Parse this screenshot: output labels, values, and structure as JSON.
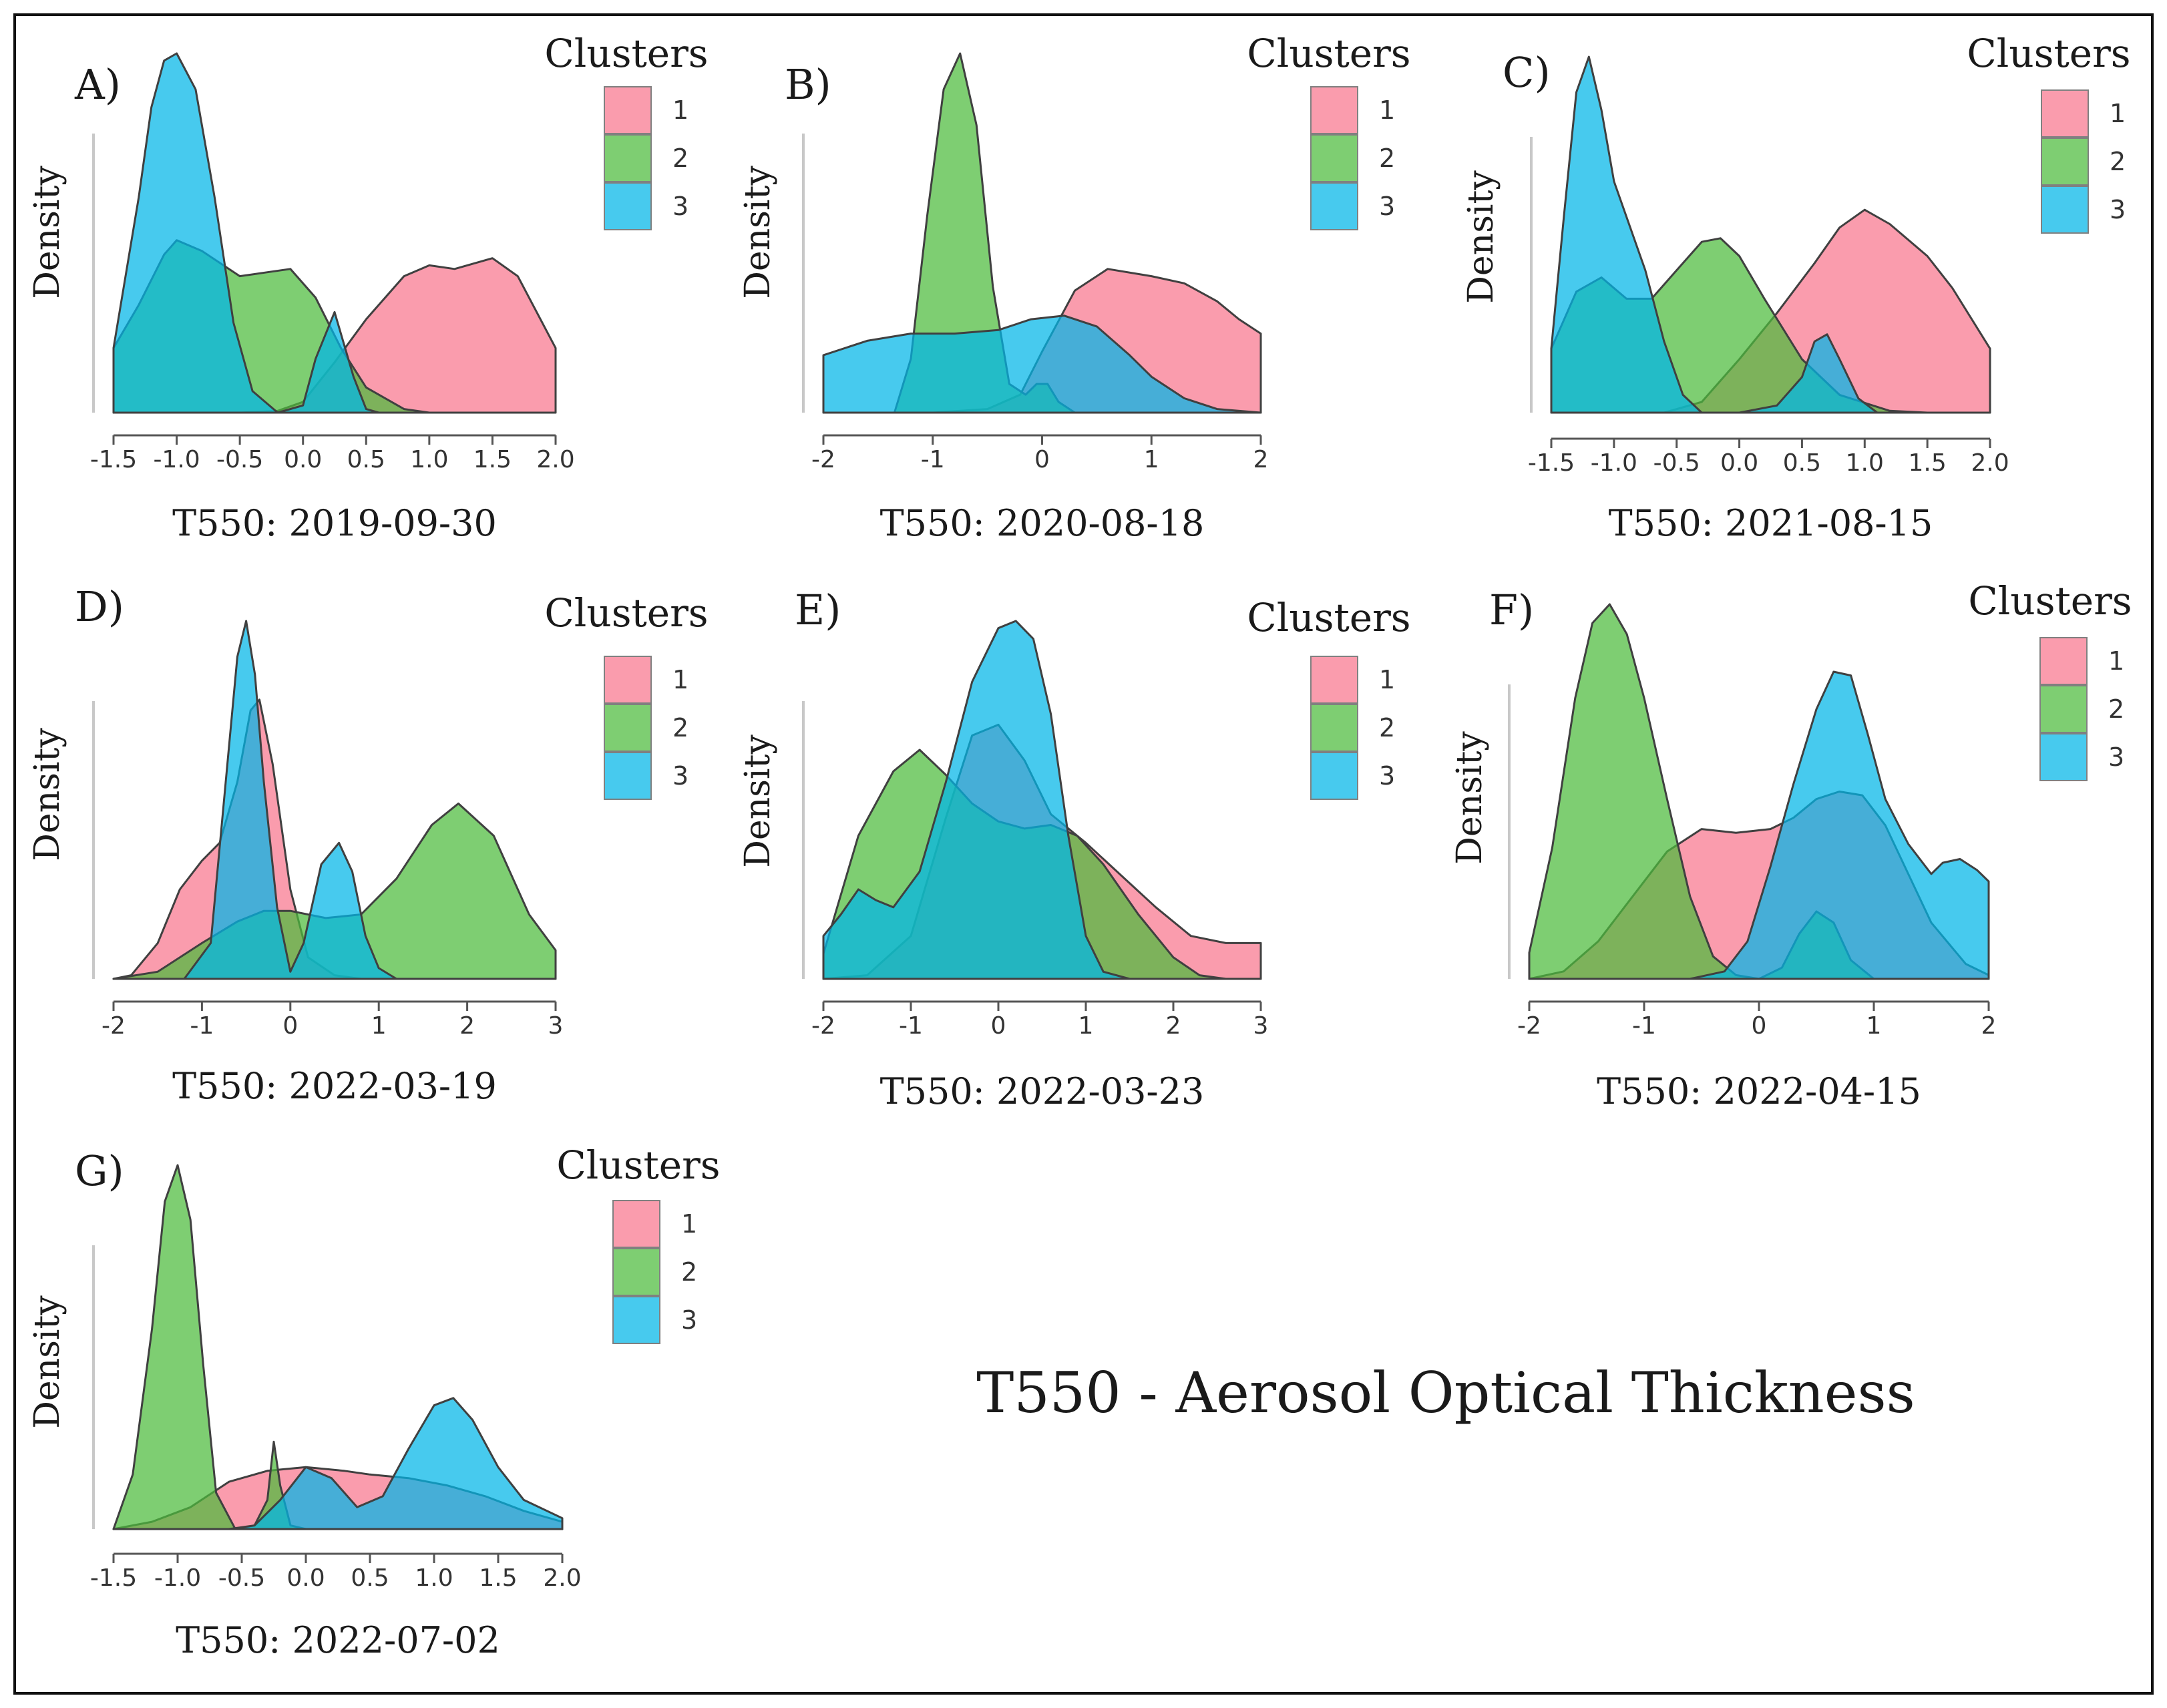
{
  "figure_title": "T550 - Aerosol Optical Thickness",
  "colors": {
    "cluster_1": "#F8768D",
    "cluster_2": "#4CBB3C",
    "cluster_3": "#00B5E8",
    "outline": "#404040",
    "frame": "#111111"
  },
  "chart_data": [
    {
      "panel": "A)",
      "type": "area",
      "xlabel": "T550: 2019-09-30",
      "ylabel": "Density",
      "xlim": [
        -1.5,
        2.0
      ],
      "xticks": [
        "-1.5",
        "-1.0",
        "-0.5",
        "0.0",
        "0.5",
        "1.0",
        "1.5",
        "2.0"
      ],
      "legend": {
        "title": "Clusters",
        "entries": [
          "1",
          "2",
          "3"
        ]
      },
      "series": [
        {
          "name": "1",
          "x": [
            -1.5,
            -0.5,
            -0.2,
            0.0,
            0.25,
            0.5,
            0.8,
            1.0,
            1.2,
            1.5,
            1.7,
            2.0
          ],
          "y": [
            0,
            0,
            0.005,
            0.03,
            0.14,
            0.26,
            0.38,
            0.41,
            0.4,
            0.43,
            0.38,
            0.18
          ]
        },
        {
          "name": "2",
          "x": [
            -1.5,
            -1.3,
            -1.1,
            -1.0,
            -0.8,
            -0.5,
            -0.3,
            -0.1,
            0.1,
            0.3,
            0.5,
            0.8,
            1.0
          ],
          "y": [
            0.18,
            0.3,
            0.44,
            0.48,
            0.45,
            0.38,
            0.39,
            0.4,
            0.32,
            0.18,
            0.07,
            0.01,
            0
          ]
        },
        {
          "name": "3",
          "x": [
            -1.5,
            -1.3,
            -1.2,
            -1.1,
            -1.0,
            -0.85,
            -0.7,
            -0.55,
            -0.4,
            -0.2,
            0.0,
            0.1,
            0.25,
            0.4,
            0.5,
            0.6,
            2.0
          ],
          "y": [
            0.18,
            0.6,
            0.85,
            0.98,
            1.0,
            0.9,
            0.6,
            0.25,
            0.06,
            0.0,
            0.02,
            0.15,
            0.28,
            0.1,
            0.01,
            0,
            0
          ]
        }
      ]
    },
    {
      "panel": "B)",
      "type": "area",
      "xlabel": "T550: 2020-08-18",
      "ylabel": "Density",
      "xlim": [
        -2,
        2
      ],
      "xticks": [
        "-2",
        "-1",
        "0",
        "1",
        "2"
      ],
      "legend": {
        "title": "Clusters",
        "entries": [
          "1",
          "2",
          "3"
        ]
      },
      "series": [
        {
          "name": "1",
          "x": [
            -2,
            -1.0,
            -0.5,
            -0.2,
            0.0,
            0.3,
            0.6,
            1.0,
            1.3,
            1.6,
            1.8,
            2.0
          ],
          "y": [
            0,
            0,
            0.01,
            0.05,
            0.17,
            0.34,
            0.4,
            0.38,
            0.36,
            0.31,
            0.26,
            0.22
          ]
        },
        {
          "name": "2",
          "x": [
            -2,
            -1.35,
            -1.2,
            -1.05,
            -0.9,
            -0.75,
            -0.6,
            -0.45,
            -0.3,
            -0.15,
            -0.05,
            0.05,
            0.15,
            0.3,
            2.0
          ],
          "y": [
            0,
            0,
            0.15,
            0.55,
            0.9,
            1.0,
            0.8,
            0.35,
            0.08,
            0.05,
            0.08,
            0.08,
            0.03,
            0,
            0
          ]
        },
        {
          "name": "3",
          "x": [
            -2,
            -1.6,
            -1.2,
            -0.8,
            -0.4,
            -0.1,
            0.2,
            0.5,
            0.8,
            1.0,
            1.3,
            1.6,
            2.0
          ],
          "y": [
            0.16,
            0.2,
            0.22,
            0.22,
            0.23,
            0.26,
            0.27,
            0.24,
            0.16,
            0.1,
            0.04,
            0.01,
            0
          ]
        }
      ]
    },
    {
      "panel": "C)",
      "type": "area",
      "xlabel": "T550: 2021-08-15",
      "ylabel": "Density",
      "xlim": [
        -1.5,
        2.0
      ],
      "xticks": [
        "-1.5",
        "-1.0",
        "-0.5",
        "0.0",
        "0.5",
        "1.0",
        "1.5",
        "2.0"
      ],
      "legend": {
        "title": "Clusters",
        "entries": [
          "1",
          "2",
          "3"
        ]
      },
      "series": [
        {
          "name": "1",
          "x": [
            -1.5,
            -0.6,
            -0.3,
            0.0,
            0.3,
            0.6,
            0.8,
            1.0,
            1.2,
            1.5,
            1.7,
            2.0
          ],
          "y": [
            0,
            0,
            0.03,
            0.15,
            0.28,
            0.42,
            0.52,
            0.57,
            0.53,
            0.44,
            0.35,
            0.18
          ]
        },
        {
          "name": "2",
          "x": [
            -1.5,
            -1.3,
            -1.1,
            -0.9,
            -0.7,
            -0.5,
            -0.3,
            -0.15,
            0.0,
            0.2,
            0.5,
            0.8,
            1.2,
            1.5
          ],
          "y": [
            0.18,
            0.34,
            0.38,
            0.32,
            0.32,
            0.4,
            0.48,
            0.49,
            0.44,
            0.32,
            0.15,
            0.05,
            0.005,
            0
          ]
        },
        {
          "name": "3",
          "x": [
            -1.5,
            -1.4,
            -1.3,
            -1.2,
            -1.1,
            -1.0,
            -0.9,
            -0.75,
            -0.6,
            -0.45,
            -0.3,
            0.0,
            0.3,
            0.5,
            0.6,
            0.7,
            0.8,
            0.95,
            1.1,
            2.0
          ],
          "y": [
            0.18,
            0.55,
            0.9,
            1.0,
            0.85,
            0.65,
            0.55,
            0.4,
            0.2,
            0.05,
            0.0,
            0.0,
            0.02,
            0.1,
            0.2,
            0.22,
            0.15,
            0.04,
            0,
            0
          ]
        }
      ]
    },
    {
      "panel": "D)",
      "type": "area",
      "xlabel": "T550: 2022-03-19",
      "ylabel": "Density",
      "xlim": [
        -2,
        3
      ],
      "xticks": [
        "-2",
        "-1",
        "0",
        "1",
        "2",
        "3"
      ],
      "legend": {
        "title": "Clusters",
        "entries": [
          "1",
          "2",
          "3"
        ]
      },
      "series": [
        {
          "name": "1",
          "x": [
            -2,
            -1.8,
            -1.5,
            -1.25,
            -1.0,
            -0.8,
            -0.6,
            -0.45,
            -0.35,
            -0.2,
            0.0,
            0.2,
            0.5,
            0.8,
            3.0
          ],
          "y": [
            0,
            0.01,
            0.1,
            0.25,
            0.33,
            0.38,
            0.55,
            0.75,
            0.78,
            0.6,
            0.25,
            0.06,
            0.01,
            0,
            0
          ]
        },
        {
          "name": "2",
          "x": [
            -2,
            -1.5,
            -1.0,
            -0.6,
            -0.3,
            0.0,
            0.4,
            0.8,
            1.2,
            1.6,
            1.9,
            2.3,
            2.7,
            3.0
          ],
          "y": [
            0,
            0.02,
            0.1,
            0.16,
            0.19,
            0.19,
            0.17,
            0.18,
            0.28,
            0.43,
            0.49,
            0.4,
            0.18,
            0.08
          ]
        },
        {
          "name": "3",
          "x": [
            -2,
            -1.2,
            -0.9,
            -0.75,
            -0.6,
            -0.5,
            -0.4,
            -0.3,
            -0.15,
            0.0,
            0.15,
            0.35,
            0.55,
            0.7,
            0.85,
            1.0,
            1.2,
            3.0
          ],
          "y": [
            0,
            0,
            0.1,
            0.5,
            0.9,
            1.0,
            0.85,
            0.55,
            0.2,
            0.02,
            0.1,
            0.32,
            0.38,
            0.3,
            0.12,
            0.03,
            0,
            0
          ]
        }
      ]
    },
    {
      "panel": "E)",
      "type": "area",
      "xlabel": "T550: 2022-03-23",
      "ylabel": "Density",
      "xlim": [
        -2,
        3
      ],
      "xticks": [
        "-2",
        "-1",
        "0",
        "1",
        "2",
        "3"
      ],
      "legend": {
        "title": "Clusters",
        "entries": [
          "1",
          "2",
          "3"
        ]
      },
      "series": [
        {
          "name": "1",
          "x": [
            -2,
            -1.5,
            -1.0,
            -0.6,
            -0.3,
            0.0,
            0.3,
            0.6,
            1.0,
            1.4,
            1.8,
            2.2,
            2.6,
            3.0
          ],
          "y": [
            0,
            0.01,
            0.12,
            0.45,
            0.68,
            0.71,
            0.61,
            0.46,
            0.38,
            0.29,
            0.2,
            0.12,
            0.1,
            0.1
          ]
        },
        {
          "name": "2",
          "x": [
            -2,
            -1.6,
            -1.2,
            -0.9,
            -0.6,
            -0.3,
            0.0,
            0.3,
            0.6,
            0.9,
            1.2,
            1.6,
            2.0,
            2.3,
            2.6
          ],
          "y": [
            0.07,
            0.4,
            0.58,
            0.64,
            0.57,
            0.49,
            0.44,
            0.42,
            0.43,
            0.4,
            0.32,
            0.18,
            0.06,
            0.01,
            0
          ]
        },
        {
          "name": "3",
          "x": [
            -2,
            -1.8,
            -1.6,
            -1.4,
            -1.2,
            -0.9,
            -0.6,
            -0.3,
            0.0,
            0.2,
            0.4,
            0.6,
            0.8,
            1.0,
            1.2,
            1.5,
            3.0
          ],
          "y": [
            0.12,
            0.18,
            0.25,
            0.22,
            0.2,
            0.3,
            0.55,
            0.83,
            0.98,
            1.0,
            0.95,
            0.74,
            0.4,
            0.12,
            0.02,
            0,
            0
          ]
        }
      ]
    },
    {
      "panel": "F)",
      "type": "area",
      "xlabel": "T550: 2022-04-15",
      "ylabel": "Density",
      "xlim": [
        -2,
        2
      ],
      "xticks": [
        "-2",
        "-1",
        "0",
        "1",
        "2"
      ],
      "legend": {
        "title": "Clusters",
        "entries": [
          "1",
          "2",
          "3"
        ]
      },
      "series": [
        {
          "name": "1",
          "x": [
            -2,
            -1.7,
            -1.4,
            -1.1,
            -0.8,
            -0.5,
            -0.2,
            0.1,
            0.3,
            0.5,
            0.7,
            0.9,
            1.1,
            1.3,
            1.5,
            1.8,
            2.0
          ],
          "y": [
            0,
            0.02,
            0.1,
            0.22,
            0.34,
            0.4,
            0.39,
            0.4,
            0.43,
            0.48,
            0.5,
            0.49,
            0.41,
            0.28,
            0.15,
            0.04,
            0.01
          ]
        },
        {
          "name": "2",
          "x": [
            -2,
            -1.8,
            -1.6,
            -1.45,
            -1.3,
            -1.15,
            -1.0,
            -0.8,
            -0.6,
            -0.4,
            -0.2,
            0.0,
            0.2,
            0.35,
            0.5,
            0.65,
            0.8,
            1.0,
            2.0
          ],
          "y": [
            0.07,
            0.35,
            0.75,
            0.95,
            1.0,
            0.92,
            0.75,
            0.48,
            0.22,
            0.06,
            0.01,
            0.0,
            0.03,
            0.12,
            0.18,
            0.15,
            0.05,
            0,
            0
          ]
        },
        {
          "name": "3",
          "x": [
            -2,
            -0.6,
            -0.3,
            -0.1,
            0.1,
            0.3,
            0.5,
            0.65,
            0.8,
            0.95,
            1.1,
            1.3,
            1.5,
            1.6,
            1.75,
            1.9,
            2.0
          ],
          "y": [
            0,
            0,
            0.02,
            0.1,
            0.3,
            0.52,
            0.72,
            0.82,
            0.81,
            0.65,
            0.48,
            0.36,
            0.28,
            0.31,
            0.32,
            0.29,
            0.26
          ]
        }
      ]
    },
    {
      "panel": "G)",
      "type": "area",
      "xlabel": "T550: 2022-07-02",
      "ylabel": "Density",
      "xlim": [
        -1.5,
        2.0
      ],
      "xticks": [
        "-1.5",
        "-1.0",
        "-0.5",
        "0.0",
        "0.5",
        "1.0",
        "1.5",
        "2.0"
      ],
      "legend": {
        "title": "Clusters",
        "entries": [
          "1",
          "2",
          "3"
        ]
      },
      "series": [
        {
          "name": "1",
          "x": [
            -1.5,
            -1.2,
            -0.9,
            -0.6,
            -0.3,
            0.0,
            0.3,
            0.5,
            0.8,
            1.1,
            1.4,
            1.7,
            2.0
          ],
          "y": [
            0,
            0.02,
            0.06,
            0.13,
            0.16,
            0.17,
            0.16,
            0.15,
            0.14,
            0.12,
            0.09,
            0.05,
            0.02
          ]
        },
        {
          "name": "2",
          "x": [
            -1.5,
            -1.35,
            -1.2,
            -1.1,
            -1.0,
            -0.9,
            -0.8,
            -0.7,
            -0.55,
            -0.4,
            -0.3,
            -0.25,
            -0.2,
            -0.12,
            0.0,
            2.0
          ],
          "y": [
            0,
            0.15,
            0.55,
            0.9,
            1.0,
            0.85,
            0.45,
            0.1,
            0.0,
            0.01,
            0.08,
            0.24,
            0.12,
            0.01,
            0,
            0
          ]
        },
        {
          "name": "3",
          "x": [
            -1.5,
            -0.6,
            -0.4,
            -0.2,
            0.0,
            0.2,
            0.4,
            0.6,
            0.8,
            1.0,
            1.15,
            1.3,
            1.5,
            1.7,
            2.0
          ],
          "y": [
            0,
            0,
            0.01,
            0.08,
            0.17,
            0.14,
            0.06,
            0.09,
            0.22,
            0.34,
            0.36,
            0.3,
            0.17,
            0.08,
            0.03
          ]
        }
      ]
    }
  ]
}
